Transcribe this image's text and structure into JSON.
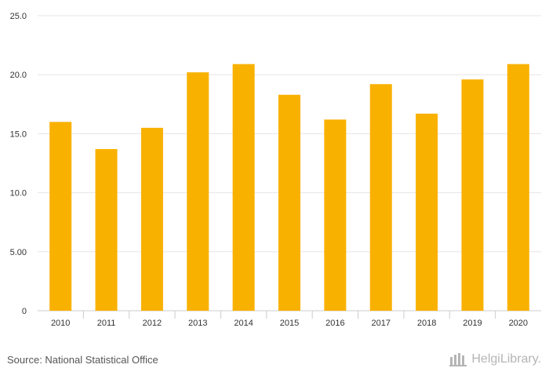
{
  "chart_data": {
    "type": "bar",
    "title": "",
    "xlabel": "",
    "ylabel": "",
    "categories": [
      "2010",
      "2011",
      "2012",
      "2013",
      "2014",
      "2015",
      "2016",
      "2017",
      "2018",
      "2019",
      "2020"
    ],
    "values": [
      16.0,
      13.7,
      15.5,
      20.2,
      20.9,
      18.3,
      16.2,
      19.2,
      16.7,
      19.6,
      20.9
    ],
    "ylim": [
      0,
      25
    ],
    "yticks": [
      0,
      5,
      10,
      15,
      20,
      25
    ],
    "ytick_labels": [
      "0",
      "5.00",
      "10.0",
      "15.0",
      "20.0",
      "25.0"
    ],
    "grid": true,
    "bar_color": "#f9b100"
  },
  "footer": {
    "source": "Source: National Statistical Office",
    "brand": "HelgiLibrary."
  },
  "colors": {
    "grid": "#e6e6e6",
    "axis": "#cccccc",
    "logo": "#b5b5b5"
  }
}
